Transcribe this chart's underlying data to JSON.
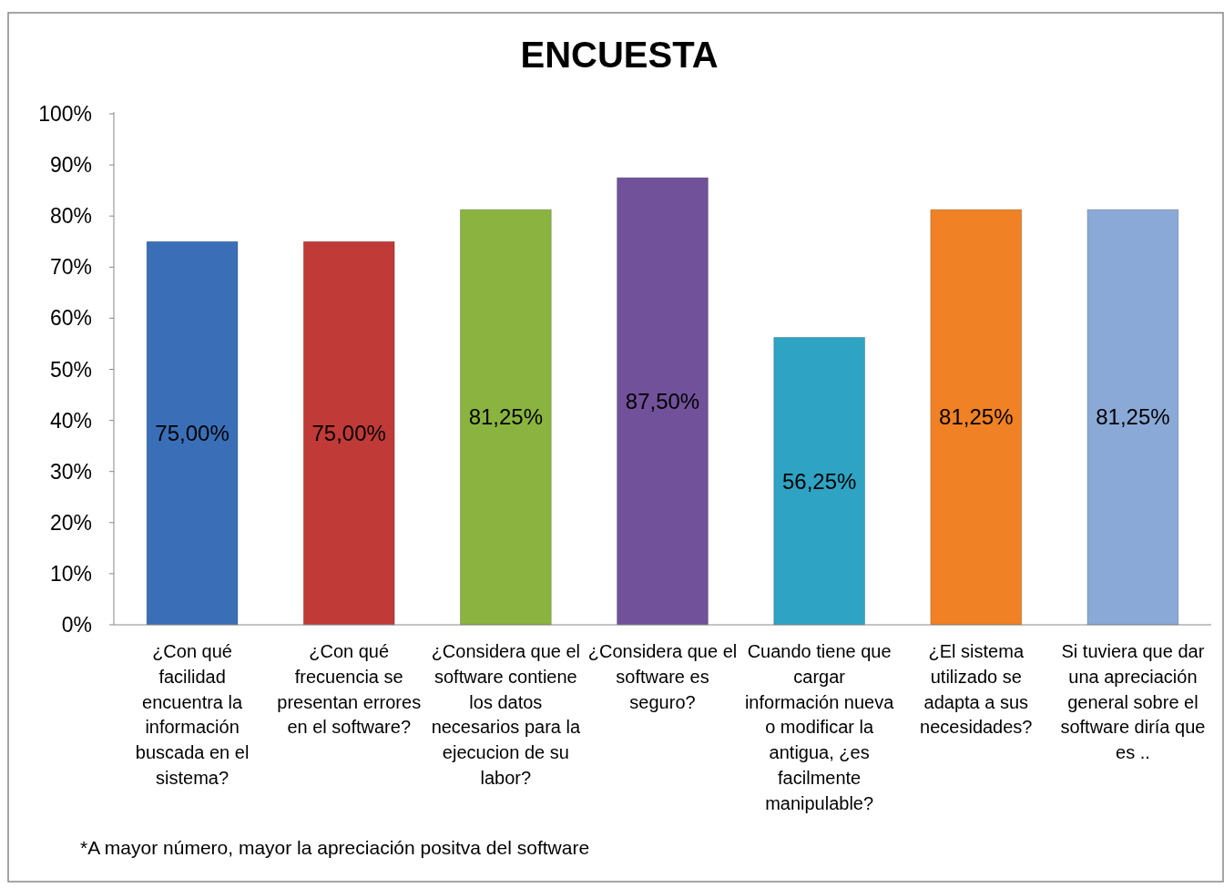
{
  "chart_data": {
    "type": "bar",
    "title": "ENCUESTA",
    "categories": [
      "¿Con qué facilidad encuentra la información buscada en el sistema?",
      "¿Con qué frecuencia se presentan errores en el software?",
      "¿Considera que el software contiene los datos necesarios para la ejecucion de su labor?",
      "¿Considera que el software es seguro?",
      "Cuando tiene que cargar información nueva o modificar la antigua, ¿es facilmente manipulable?",
      "¿El sistema utilizado se adapta a sus necesidades?",
      "Si tuviera que dar una apreciación general sobre el software diría que es .."
    ],
    "values": [
      75,
      75,
      81.25,
      87.5,
      56.25,
      81.25,
      81.25
    ],
    "colors": [
      "#3a6fb8",
      "#c03a37",
      "#8ab43f",
      "#71519a",
      "#2fa3c3",
      "#f08124",
      "#8aa9d6"
    ],
    "value_labels": [
      "75,00%",
      "75,00%",
      "81,25%",
      "87,50%",
      "56,25%",
      "81,25%",
      "81,25%"
    ],
    "ylim": [
      0,
      100
    ],
    "yticks": [
      {
        "value": 0,
        "label": "0%"
      },
      {
        "value": 10,
        "label": "10%"
      },
      {
        "value": 20,
        "label": "20%"
      },
      {
        "value": 30,
        "label": "30%"
      },
      {
        "value": 40,
        "label": "40%"
      },
      {
        "value": 50,
        "label": "50%"
      },
      {
        "value": 60,
        "label": "60%"
      },
      {
        "value": 70,
        "label": "70%"
      },
      {
        "value": 80,
        "label": "80%"
      },
      {
        "value": 90,
        "label": "90%"
      },
      {
        "value": 100,
        "label": "100%"
      }
    ],
    "grid": false,
    "annotations": [
      "*A mayor número, mayor la apreciación positva del software"
    ]
  }
}
